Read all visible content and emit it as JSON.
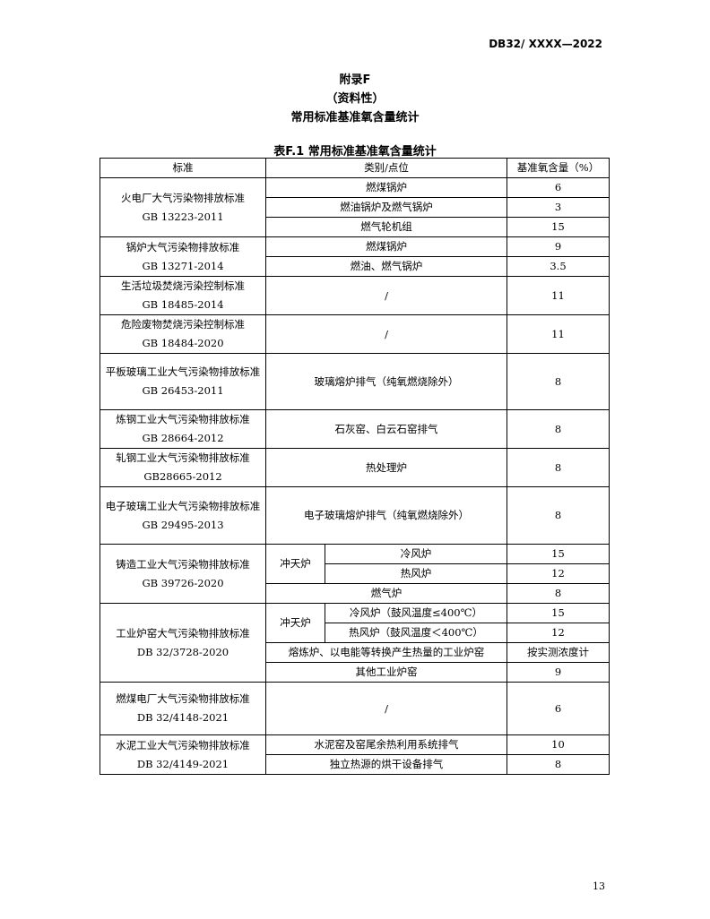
{
  "header": {
    "doc_code": "DB32/ XXXX—2022"
  },
  "appendix": {
    "title": "附录F",
    "type": "（资料性）",
    "subtitle": "常用标准基准氧含量统计"
  },
  "table": {
    "caption": "表F.1  常用标准基准氧含量统计",
    "columns": [
      "标准",
      "类别/点位",
      "基准氧含量（%）"
    ],
    "r1": {
      "std": "火电厂大气污染物排放标准",
      "code": "GB 13223-2011",
      "items": [
        [
          "燃煤锅炉",
          "6"
        ],
        [
          "燃油锅炉及燃气锅炉",
          "3"
        ],
        [
          "燃气轮机组",
          "15"
        ]
      ]
    },
    "r2": {
      "std": "锅炉大气污染物排放标准",
      "code": "GB 13271-2014",
      "items": [
        [
          "燃煤锅炉",
          "9"
        ],
        [
          "燃油、燃气锅炉",
          "3.5"
        ]
      ]
    },
    "r3": {
      "std": "生活垃圾焚烧污染控制标准",
      "code": "GB 18485-2014",
      "cat": "/",
      "val": "11"
    },
    "r4": {
      "std": "危险废物焚烧污染控制标准",
      "code": "GB 18484-2020",
      "cat": "/",
      "val": "11"
    },
    "r5": {
      "std": "平板玻璃工业大气污染物排放标准",
      "code": "GB 26453-2011",
      "cat": "玻璃熔炉排气（纯氧燃烧除外）",
      "val": "8"
    },
    "r6": {
      "std": "炼钢工业大气污染物排放标准",
      "code": "GB 28664-2012",
      "cat": "石灰窑、白云石窑排气",
      "val": "8"
    },
    "r7": {
      "std": "轧钢工业大气污染物排放标准",
      "code": "GB28665-2012",
      "cat": "热处理炉",
      "val": "8"
    },
    "r8": {
      "std": "电子玻璃工业大气污染物排放标准",
      "code": "GB 29495-2013",
      "cat": "电子玻璃熔炉排气（纯氧燃烧除外）",
      "val": "8"
    },
    "r9": {
      "std": "铸造工业大气污染物排放标准",
      "code": "GB 39726-2020",
      "group": "冲天炉",
      "items": [
        [
          "冷风炉",
          "15"
        ],
        [
          "热风炉",
          "12"
        ],
        [
          "燃气炉",
          "8"
        ]
      ]
    },
    "r10": {
      "std": "工业炉窑大气污染物排放标准",
      "code": "DB 32/3728-2020",
      "group": "冲天炉",
      "items": [
        [
          "冷风炉（鼓风温度≤400℃）",
          "15"
        ],
        [
          "热风炉（鼓风温度＜400℃）",
          "12"
        ],
        [
          "熔炼炉、以电能等转换产生热量的工业炉窑",
          "按实测浓度计"
        ],
        [
          "其他工业炉窑",
          "9"
        ]
      ]
    },
    "r11": {
      "std": "燃煤电厂大气污染物排放标准",
      "code": "DB 32/4148-2021",
      "cat": "/",
      "val": "6"
    },
    "r12": {
      "std": "水泥工业大气污染物排放标准",
      "code": "DB 32/4149-2021",
      "items": [
        [
          "水泥窑及窑尾余热利用系统排气",
          "10"
        ],
        [
          "独立热源的烘干设备排气",
          "8"
        ]
      ]
    }
  },
  "footer": {
    "page_number": "13"
  }
}
